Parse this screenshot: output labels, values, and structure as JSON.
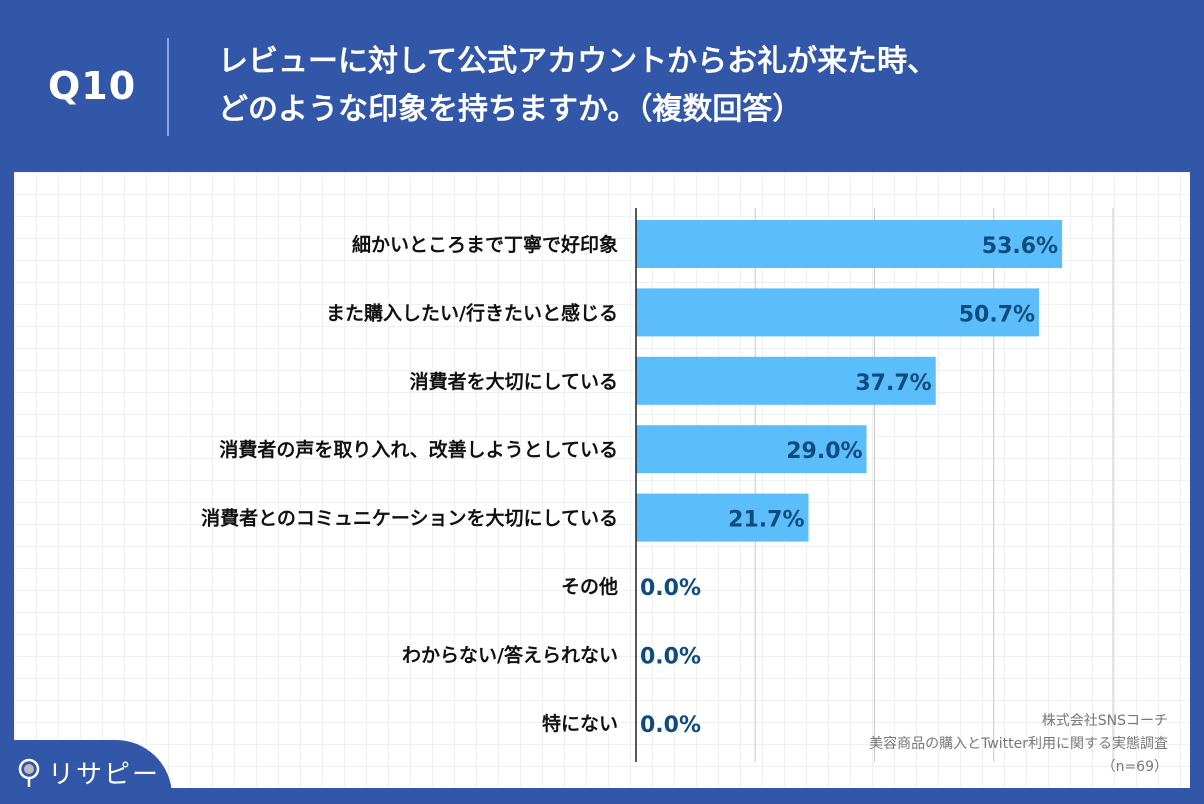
{
  "header": {
    "question_number": "Q10",
    "title": "レビューに対して公式アカウントからお礼が来た時、\nどのような印象を持ちますか。（複数回答）"
  },
  "chart_data": {
    "type": "bar",
    "orientation": "horizontal",
    "categories": [
      "細かいところまで丁寧で好印象",
      "また購入したい/行きたいと感じる",
      "消費者を大切にしている",
      "消費者の声を取り入れ、改善しようとしている",
      "消費者とのコミュニケーションを大切にしている",
      "その他",
      "わからない/答えられない",
      "特にない"
    ],
    "values": [
      53.6,
      50.7,
      37.7,
      29.0,
      21.7,
      0.0,
      0.0,
      0.0
    ],
    "data_labels": [
      "53.6%",
      "50.7%",
      "37.7%",
      "29.0%",
      "21.7%",
      "0.0%",
      "0.0%",
      "0.0%"
    ],
    "unit": "%",
    "xlim": [
      0,
      60
    ],
    "grid_step": 15,
    "grid": true,
    "bar_color": "#5bbefa",
    "label_color": "#0f4c7e"
  },
  "source": {
    "company": "株式会社SNSコーチ",
    "survey": "美容商品の購入とTwitter利用に関する実態調査",
    "sample": "（n=69）"
  },
  "logo": {
    "text": "リサピー"
  }
}
